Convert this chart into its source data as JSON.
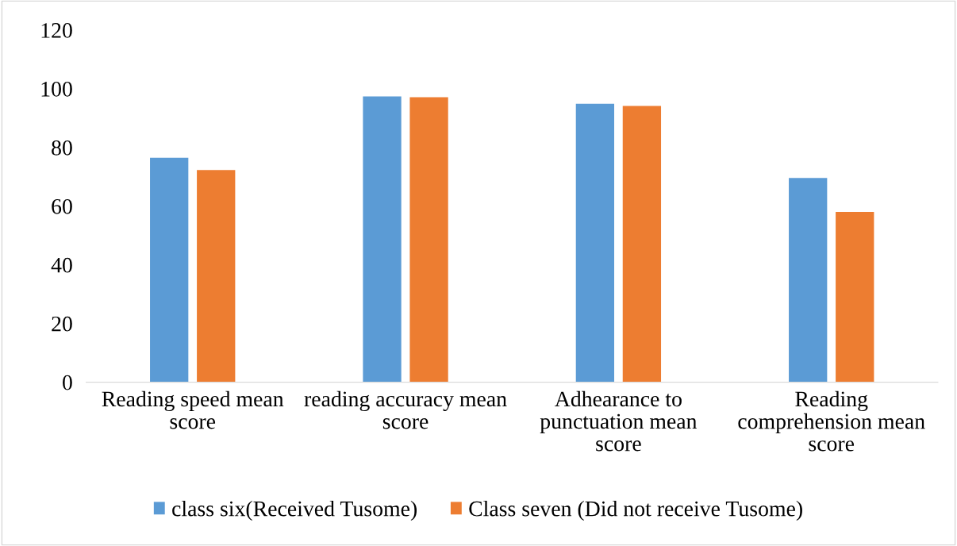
{
  "chart_data": {
    "type": "bar",
    "categories": [
      "Reading speed mean score",
      "reading accuracy mean score",
      "Adhearance to punctuation mean score",
      "Reading comprehension mean score"
    ],
    "series": [
      {
        "name": "class six(Received Tusome)",
        "color": "#5b9bd5",
        "values": [
          76.5,
          97.4,
          94.9,
          69.6
        ]
      },
      {
        "name": "Class seven (Did not receive Tusome)",
        "color": "#ed7d31",
        "values": [
          72.3,
          97.1,
          94.1,
          58.0
        ]
      }
    ],
    "ylim": [
      0,
      120
    ],
    "yticks": [
      0,
      20,
      40,
      60,
      80,
      100,
      120
    ],
    "grid": false,
    "legend": "bottom"
  }
}
